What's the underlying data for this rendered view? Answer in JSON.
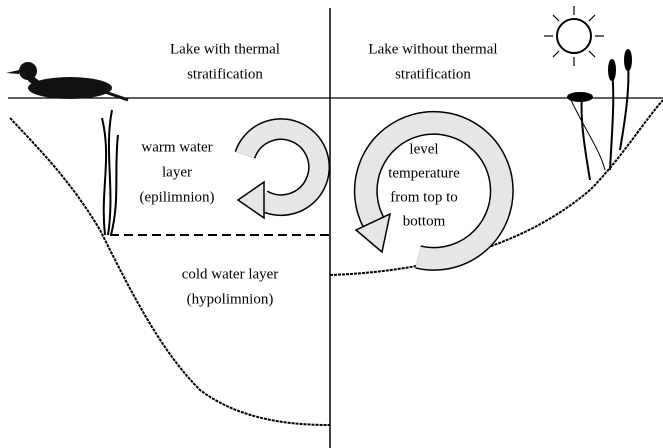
{
  "panels": [
    {
      "title": [
        "Lake with thermal",
        "stratification"
      ],
      "layers": [
        {
          "label": [
            "warm water",
            "layer",
            "(epilimnion)"
          ]
        },
        {
          "label": [
            "cold water layer",
            "(hypolimnion)"
          ]
        }
      ]
    },
    {
      "title": [
        "Lake without thermal",
        "stratification"
      ],
      "layers": [
        {
          "label": [
            "level",
            "temperature",
            "from top to",
            "bottom"
          ]
        }
      ]
    }
  ]
}
